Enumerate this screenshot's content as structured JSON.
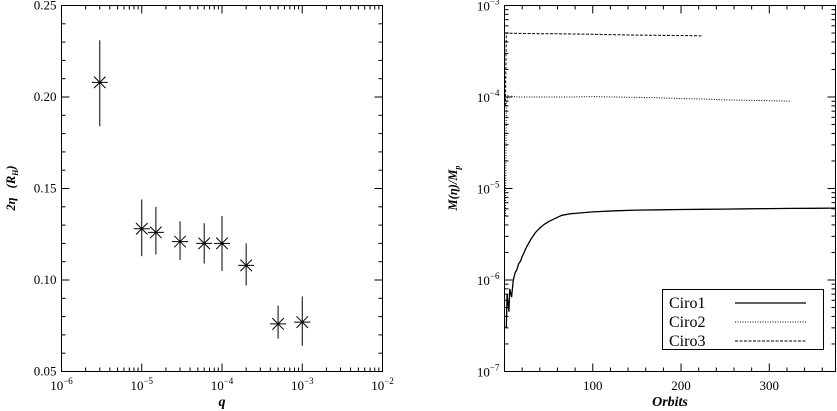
{
  "chart_data": [
    {
      "type": "scatter",
      "xscale": "log",
      "xlim": [
        1e-06,
        0.01
      ],
      "ylim": [
        0.05,
        0.25
      ],
      "xlabel": "q",
      "ylabel_main": "2η",
      "ylabel_unit_base": "(R",
      "ylabel_unit_sub": "H",
      "ylabel_unit_close": ")",
      "x_ticks": [
        {
          "value": 1e-06,
          "base": "10",
          "exp": "−6"
        },
        {
          "value": 1e-05,
          "base": "10",
          "exp": "−5"
        },
        {
          "value": 0.0001,
          "base": "10",
          "exp": "−4"
        },
        {
          "value": 0.001,
          "base": "10",
          "exp": "−3"
        },
        {
          "value": 0.01,
          "base": "10",
          "exp": "−2"
        }
      ],
      "y_ticks": [
        {
          "value": 0.05,
          "label": "0.05"
        },
        {
          "value": 0.1,
          "label": "0.10"
        },
        {
          "value": 0.15,
          "label": "0.15"
        },
        {
          "value": 0.2,
          "label": "0.20"
        },
        {
          "value": 0.25,
          "label": "0.25"
        }
      ],
      "marker": "asterisk",
      "points": [
        {
          "x": 3e-06,
          "y": 0.208,
          "err_low": 0.184,
          "err_high": 0.231
        },
        {
          "x": 1e-05,
          "y": 0.128,
          "err_low": 0.113,
          "err_high": 0.144
        },
        {
          "x": 1.5e-05,
          "y": 0.126,
          "err_low": 0.114,
          "err_high": 0.14
        },
        {
          "x": 3e-05,
          "y": 0.121,
          "err_low": 0.111,
          "err_high": 0.132
        },
        {
          "x": 6e-05,
          "y": 0.12,
          "err_low": 0.109,
          "err_high": 0.131
        },
        {
          "x": 0.0001,
          "y": 0.12,
          "err_low": 0.105,
          "err_high": 0.135
        },
        {
          "x": 0.0002,
          "y": 0.108,
          "err_low": 0.097,
          "err_high": 0.12
        },
        {
          "x": 0.0005,
          "y": 0.076,
          "err_low": 0.068,
          "err_high": 0.086
        },
        {
          "x": 0.001,
          "y": 0.077,
          "err_low": 0.064,
          "err_high": 0.091
        }
      ]
    },
    {
      "type": "line",
      "yscale": "log",
      "xlim": [
        0,
        375
      ],
      "ylim": [
        1e-07,
        0.001
      ],
      "xlabel": "Orbits",
      "ylabel_main": "M(η)/M",
      "ylabel_sub": "p",
      "x_ticks": [
        {
          "value": 100,
          "label": "100"
        },
        {
          "value": 200,
          "label": "200"
        },
        {
          "value": 300,
          "label": "300"
        }
      ],
      "y_ticks": [
        {
          "value": 1e-07,
          "base": "10",
          "exp": "−7"
        },
        {
          "value": 1e-06,
          "base": "10",
          "exp": "−6"
        },
        {
          "value": 1e-05,
          "base": "10",
          "exp": "−5"
        },
        {
          "value": 0.0001,
          "base": "10",
          "exp": "−4"
        },
        {
          "value": 0.001,
          "base": "10",
          "exp": "−3"
        }
      ],
      "legend_position": "bottom-right",
      "series": [
        {
          "name": "Ciro1",
          "dash": "solid",
          "stroke_width": 1.3,
          "x": [
            2,
            3,
            5,
            6,
            8,
            10,
            12,
            14,
            16,
            18,
            20,
            25,
            30,
            35,
            40,
            45,
            50,
            55,
            60,
            65,
            70,
            75,
            80,
            100,
            125,
            150,
            175,
            200,
            225,
            250,
            275,
            300,
            325,
            350,
            375
          ],
          "y": [
            3e-07,
            7e-07,
            4.5e-07,
            8e-07,
            6.5e-07,
            1e-06,
            1.2e-06,
            1.3e-06,
            1.5e-06,
            1.6e-06,
            1.8e-06,
            2.3e-06,
            2.8e-06,
            3.3e-06,
            3.7e-06,
            4.05e-06,
            4.35e-06,
            4.6e-06,
            4.85e-06,
            5.1e-06,
            5.2e-06,
            5.3e-06,
            5.35e-06,
            5.55e-06,
            5.7e-06,
            5.8e-06,
            5.85e-06,
            5.9e-06,
            5.93e-06,
            5.96e-06,
            6e-06,
            6.03e-06,
            6.06e-06,
            6.08e-06,
            6.1e-06
          ]
        },
        {
          "name": "Ciro2",
          "dash": "1,1.5",
          "stroke_width": 1,
          "x": [
            1,
            2,
            3,
            4,
            5,
            8,
            10,
            15,
            20,
            30,
            50,
            75,
            100,
            125,
            150,
            175,
            200,
            225,
            250,
            275,
            300,
            325
          ],
          "y": [
            5e-06,
            8e-05,
            9.5e-05,
            0.000103,
            9.9e-05,
            0.000102,
            0.000101,
            0.0001,
            0.0001,
            0.0001,
            0.0001,
            0.0001,
            0.000101,
            0.0001,
            9.9e-05,
            9.8e-05,
            9.6e-05,
            9.5e-05,
            9.3e-05,
            9.2e-05,
            9.1e-05,
            9e-05
          ]
        },
        {
          "name": "Ciro3",
          "dash": "3,1.5",
          "stroke_width": 1,
          "x": [
            1,
            2,
            3,
            4,
            5,
            7,
            10,
            20,
            40,
            60,
            80,
            100,
            125,
            150,
            175,
            200,
            225
          ],
          "y": [
            8e-05,
            0.000495,
            0.000505,
            0.000495,
            0.0005,
            0.000497,
            0.000497,
            0.000495,
            0.000492,
            0.00049,
            0.000488,
            0.000485,
            0.00048,
            0.000475,
            0.000472,
            0.00047,
            0.000465
          ]
        }
      ]
    }
  ]
}
